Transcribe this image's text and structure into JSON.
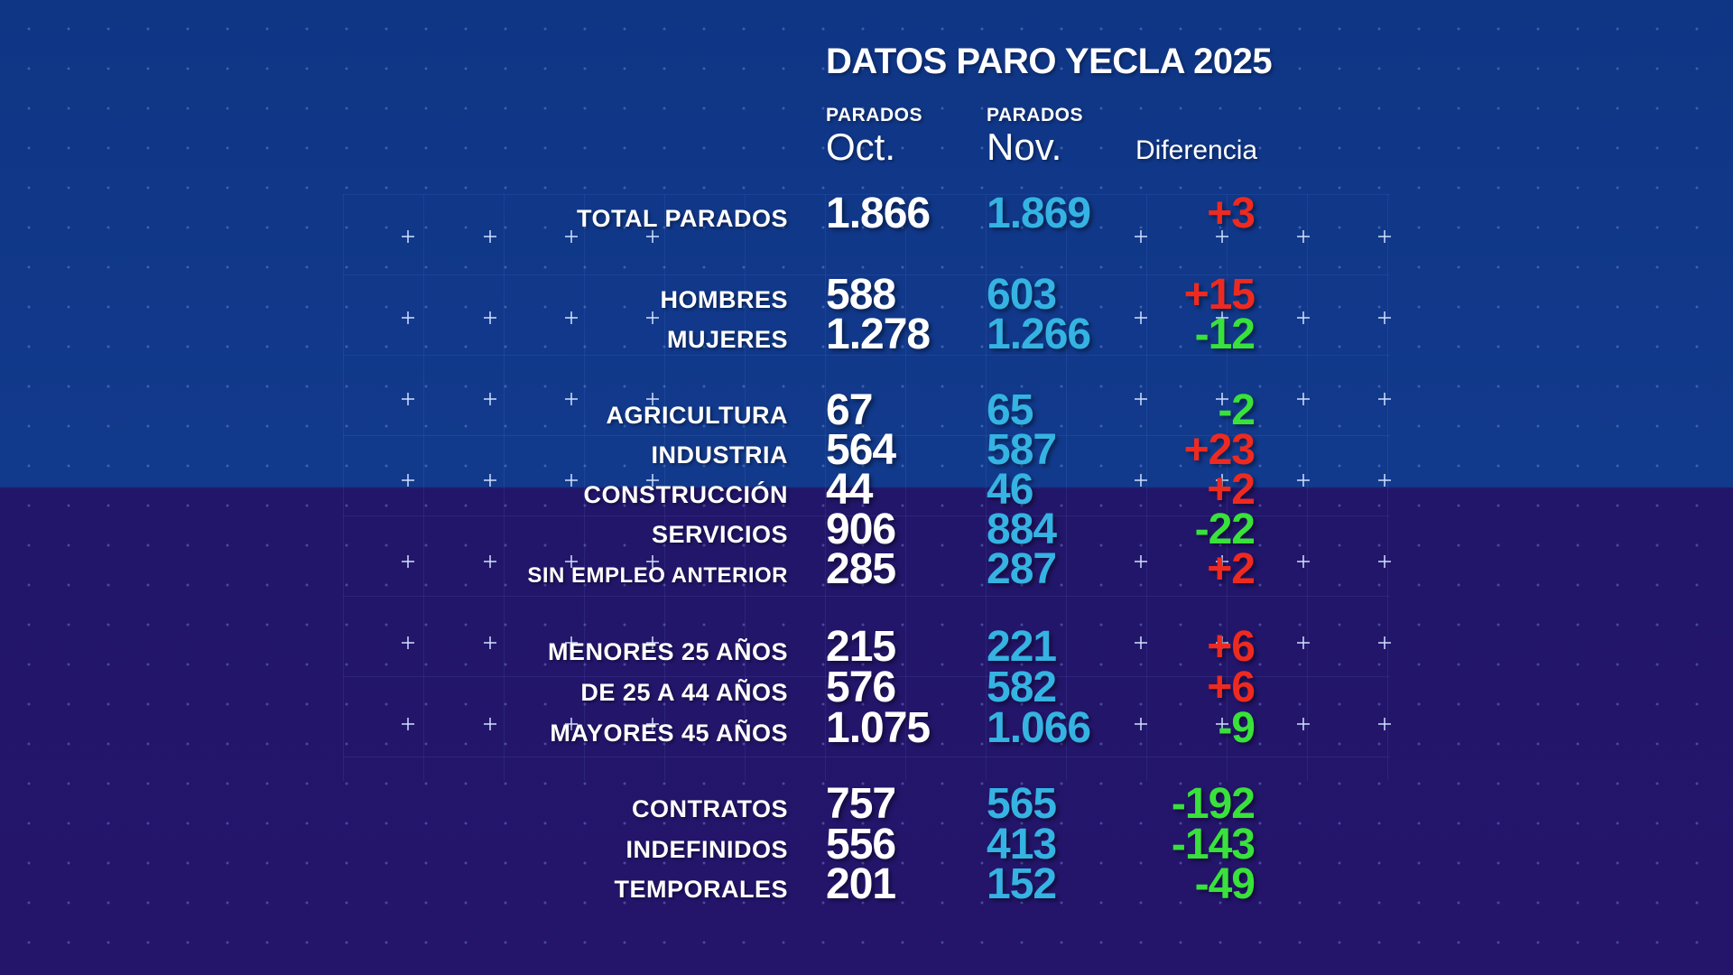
{
  "title": "DATOS PARO YECLA 2025",
  "headers": {
    "oct_small": "PARADOS",
    "oct_big": "Oct.",
    "nov_small": "PARADOS",
    "nov_big": "Nov.",
    "diff": "Diferencia"
  },
  "colors": {
    "background_top": "#123a8c",
    "background_bottom": "#24156b",
    "oct_value": "#ffffff",
    "nov_value": "#35b3e2",
    "increase": "#ee2a20",
    "decrease": "#39e23a"
  },
  "rows": [
    {
      "label": "TOTAL PARADOS",
      "oct": "1.866",
      "nov": "1.869",
      "diff": "+3"
    },
    {
      "label": "HOMBRES",
      "oct": "588",
      "nov": "603",
      "diff": "+15"
    },
    {
      "label": "MUJERES",
      "oct": "1.278",
      "nov": "1.266",
      "diff": "-12"
    },
    {
      "label": "AGRICULTURA",
      "oct": "67",
      "nov": "65",
      "diff": "-2"
    },
    {
      "label": "INDUSTRIA",
      "oct": "564",
      "nov": "587",
      "diff": "+23"
    },
    {
      "label": "CONSTRUCCIÓN",
      "oct": "44",
      "nov": "46",
      "diff": "+2"
    },
    {
      "label": "SERVICIOS",
      "oct": "906",
      "nov": "884",
      "diff": "-22"
    },
    {
      "label": "SIN EMPLEO ANTERIOR",
      "oct": "285",
      "nov": "287",
      "diff": "+2"
    },
    {
      "label": "MENORES  25 AÑOS",
      "oct": "215",
      "nov": "221",
      "diff": "+6"
    },
    {
      "label": "DE 25 A 44 AÑOS",
      "oct": "576",
      "nov": "582",
      "diff": "+6"
    },
    {
      "label": "MAYORES  45 AÑOS",
      "oct": "1.075",
      "nov": "1.066",
      "diff": "-9"
    },
    {
      "label": "CONTRATOS",
      "oct": "757",
      "nov": "565",
      "diff": "-192"
    },
    {
      "label": "INDEFINIDOS",
      "oct": "556",
      "nov": "413",
      "diff": "-143"
    },
    {
      "label": "TEMPORALES",
      "oct": "201",
      "nov": "152",
      "diff": "-49"
    }
  ]
}
